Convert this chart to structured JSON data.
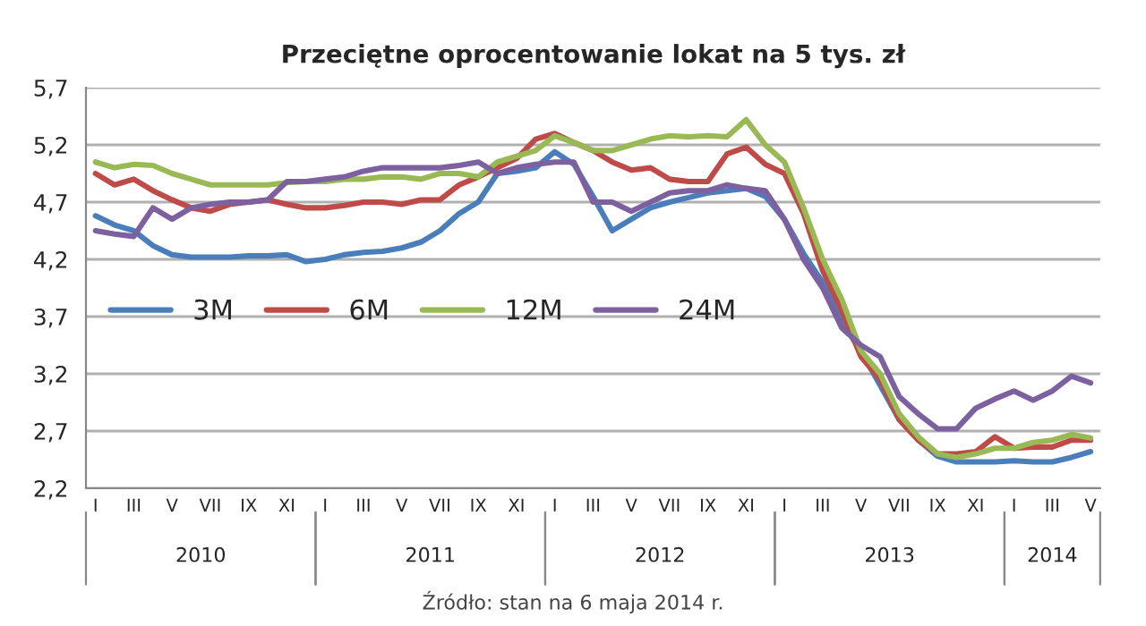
{
  "chart_data": {
    "type": "line",
    "title": "Przeciętne oprocentowanie lokat na 5 tys. zł",
    "categories": [
      "I",
      null,
      "III",
      null,
      "V",
      null,
      "VII",
      null,
      "IX",
      null,
      "XI",
      null,
      "I",
      null,
      "III",
      null,
      "V",
      null,
      "VII",
      null,
      "IX",
      null,
      "XI",
      null,
      "I",
      null,
      "III",
      null,
      "V",
      null,
      "VII",
      null,
      "IX",
      null,
      "XI",
      null,
      "I",
      null,
      "III",
      null,
      "V",
      null,
      "VII",
      null,
      "IX",
      null,
      "XI",
      null,
      "I",
      null,
      "III",
      null,
      "V"
    ],
    "series": [
      {
        "name": "3M",
        "color": "#4a7ebb",
        "values": [
          4.58,
          4.5,
          4.45,
          4.32,
          4.24,
          4.22,
          4.22,
          4.22,
          4.23,
          4.23,
          4.24,
          4.18,
          4.2,
          4.24,
          4.26,
          4.27,
          4.3,
          4.35,
          4.45,
          4.6,
          4.7,
          4.95,
          4.97,
          5.0,
          5.14,
          5.03,
          4.75,
          4.45,
          4.55,
          4.65,
          4.7,
          4.74,
          4.78,
          4.8,
          4.82,
          4.75,
          4.55,
          4.25,
          4.0,
          3.65,
          3.4,
          3.1,
          2.8,
          2.62,
          2.48,
          2.43,
          2.43,
          2.43,
          2.44,
          2.43,
          2.43,
          2.47,
          2.52
        ]
      },
      {
        "name": "6M",
        "color": "#be4b48",
        "values": [
          4.95,
          4.85,
          4.9,
          4.8,
          4.72,
          4.65,
          4.62,
          4.68,
          4.7,
          4.72,
          4.68,
          4.65,
          4.65,
          4.67,
          4.7,
          4.7,
          4.68,
          4.72,
          4.72,
          4.85,
          4.92,
          5.0,
          5.08,
          5.25,
          5.3,
          5.22,
          5.15,
          5.05,
          4.98,
          5.0,
          4.9,
          4.88,
          4.88,
          5.12,
          5.18,
          5.03,
          4.95,
          4.6,
          4.1,
          3.75,
          3.35,
          3.15,
          2.8,
          2.62,
          2.5,
          2.5,
          2.52,
          2.65,
          2.55,
          2.56,
          2.56,
          2.62,
          2.62
        ]
      },
      {
        "name": "12M",
        "color": "#98b954",
        "values": [
          5.05,
          5.0,
          5.03,
          5.02,
          4.95,
          4.9,
          4.85,
          4.85,
          4.85,
          4.85,
          4.87,
          4.88,
          4.88,
          4.9,
          4.9,
          4.92,
          4.92,
          4.9,
          4.95,
          4.95,
          4.92,
          5.05,
          5.1,
          5.15,
          5.28,
          5.22,
          5.15,
          5.15,
          5.2,
          5.25,
          5.28,
          5.27,
          5.28,
          5.27,
          5.42,
          5.2,
          5.05,
          4.65,
          4.2,
          3.85,
          3.4,
          3.2,
          2.85,
          2.65,
          2.5,
          2.47,
          2.5,
          2.55,
          2.55,
          2.6,
          2.62,
          2.67,
          2.64
        ]
      },
      {
        "name": "24M",
        "color": "#7d60a0",
        "values": [
          4.45,
          4.42,
          4.4,
          4.65,
          4.55,
          4.65,
          4.68,
          4.7,
          4.7,
          4.72,
          4.88,
          4.88,
          4.9,
          4.92,
          4.97,
          5.0,
          5.0,
          5.0,
          5.0,
          5.02,
          5.05,
          4.95,
          5.0,
          5.03,
          5.05,
          5.05,
          4.7,
          4.7,
          4.62,
          4.7,
          4.78,
          4.8,
          4.8,
          4.85,
          4.82,
          4.8,
          4.55,
          4.2,
          3.95,
          3.6,
          3.45,
          3.35,
          3.0,
          2.85,
          2.72,
          2.72,
          2.9,
          2.98,
          3.05,
          2.97,
          3.05,
          3.18,
          3.12
        ]
      }
    ],
    "ylim": [
      2.2,
      5.7
    ],
    "yticks": [
      {
        "value": 2.2,
        "label": "2,2"
      },
      {
        "value": 2.7,
        "label": "2,7"
      },
      {
        "value": 3.2,
        "label": "3,2"
      },
      {
        "value": 3.7,
        "label": "3,7"
      },
      {
        "value": 4.2,
        "label": "4,2"
      },
      {
        "value": 4.7,
        "label": "4,7"
      },
      {
        "value": 5.2,
        "label": "5,2"
      },
      {
        "value": 5.7,
        "label": "5,7"
      }
    ],
    "grid": "y",
    "legend": "left",
    "marker": "none",
    "line_style": "solid",
    "annotations": [
      "2010",
      "2011",
      "2012",
      "2013",
      "2014",
      "Źródło: stan na 6 maja 2014 r."
    ]
  }
}
